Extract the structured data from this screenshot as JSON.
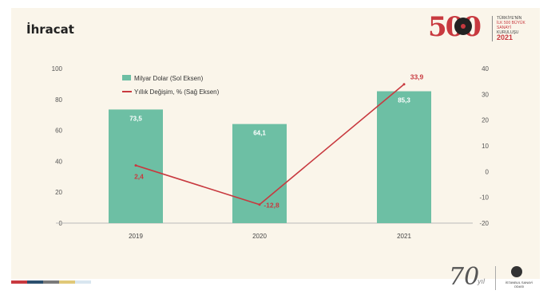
{
  "title": "İhracat",
  "logo_top": {
    "number": "500",
    "lines": [
      "TÜRKİYE'NİN",
      "İLK 500 BÜYÜK SANAYİ",
      "KURULUŞU"
    ],
    "year": "2021"
  },
  "logo_bottom": {
    "number": "70",
    "suffix": "yıl",
    "org": "İSTANBUL SANAYİ ODASI"
  },
  "colors": {
    "bar": "#6dbfa4",
    "line": "#c8393f",
    "background": "#faf5ea",
    "stripes": [
      "#c8393f",
      "#2b4f6e",
      "#7a7a7a",
      "#e0c878",
      "#d9e6f0"
    ]
  },
  "chart_data": {
    "type": "bar",
    "categories": [
      "2019",
      "2020",
      "2021"
    ],
    "series": [
      {
        "name": "Milyar Dolar (Sol Eksen)",
        "type": "bar",
        "axis": "left",
        "values": [
          73.5,
          64.1,
          85.3
        ],
        "labels": [
          "73,5",
          "64,1",
          "85,3"
        ]
      },
      {
        "name": "Yıllık Değişim, % (Sağ Eksen)",
        "type": "line",
        "axis": "right",
        "values": [
          2.4,
          -12.8,
          33.9
        ],
        "labels": [
          "2,4",
          "-12,8",
          "33,9"
        ]
      }
    ],
    "ylim_left": [
      0,
      100
    ],
    "yticks_left": [
      "0",
      "20",
      "40",
      "60",
      "80",
      "100"
    ],
    "ylim_right": [
      -20,
      40
    ],
    "yticks_right": [
      "-20",
      "-10",
      "0",
      "10",
      "20",
      "30",
      "40"
    ],
    "legend_position": "top-left",
    "grid": false
  }
}
